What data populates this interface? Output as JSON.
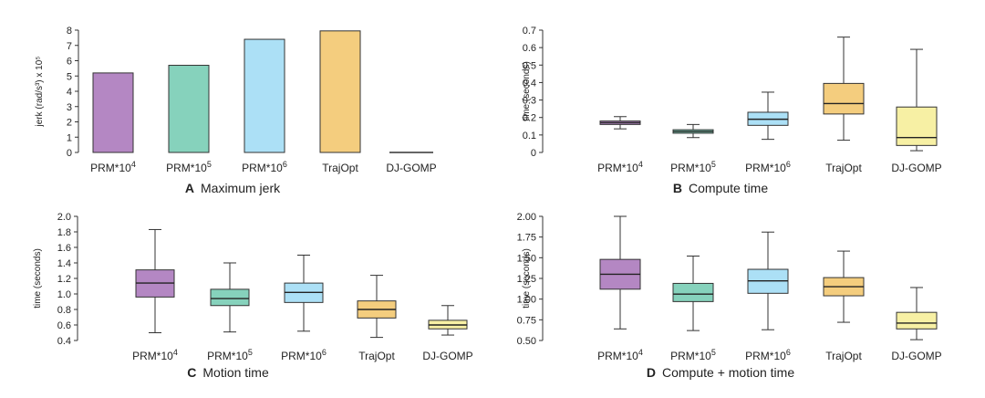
{
  "colors": {
    "PRM*10^4": {
      "fill": "#b487c3",
      "stroke": "#7b4f8c"
    },
    "PRM*10^5": {
      "fill": "#86d2bc",
      "stroke": "#3f9a80"
    },
    "PRM*10^6": {
      "fill": "#ace0f6",
      "stroke": "#5ba8cc"
    },
    "TrajOpt": {
      "fill": "#f4cd7e",
      "stroke": "#c2983b"
    },
    "DJ-GOMP": {
      "fill": "#f7f0a4",
      "stroke": "#b9ab52"
    }
  },
  "chart_data": [
    {
      "id": "A",
      "type": "bar",
      "caption_letter": "A",
      "caption": "Maximum jerk",
      "ylabel": "jerk (rad/s³) x 10⁵",
      "ylim": [
        0,
        8
      ],
      "yticks": [
        "0",
        "1",
        "2",
        "3",
        "4",
        "5",
        "6",
        "7",
        "8"
      ],
      "categories": [
        "PRM*10^4",
        "PRM*10^5",
        "PRM*10^6",
        "TrajOpt",
        "DJ-GOMP"
      ],
      "category_labels": [
        {
          "base": "PRM*10",
          "sup": "4"
        },
        {
          "base": "PRM*10",
          "sup": "5"
        },
        {
          "base": "PRM*10",
          "sup": "6"
        },
        {
          "base": "TrajOpt",
          "sup": ""
        },
        {
          "base": "DJ-GOMP",
          "sup": ""
        }
      ],
      "values": [
        5.2,
        5.7,
        7.4,
        7.95,
        0.0
      ]
    },
    {
      "id": "B",
      "type": "boxplot",
      "caption_letter": "B",
      "caption": "Compute time",
      "ylabel": "time (seconds)",
      "ylim": [
        0,
        0.7
      ],
      "yticks": [
        "0",
        "0.1",
        "0.2",
        "0.3",
        "0.4",
        "0.5",
        "0.6",
        "0.7"
      ],
      "categories": [
        "PRM*10^4",
        "PRM*10^5",
        "PRM*10^6",
        "TrajOpt",
        "DJ-GOMP"
      ],
      "category_labels": [
        {
          "base": "PRM*10",
          "sup": "4"
        },
        {
          "base": "PRM*10",
          "sup": "5"
        },
        {
          "base": "PRM*10",
          "sup": "6"
        },
        {
          "base": "TrajOpt",
          "sup": ""
        },
        {
          "base": "DJ-GOMP",
          "sup": ""
        }
      ],
      "boxes": [
        {
          "min": 0.135,
          "q1": 0.16,
          "median": 0.17,
          "q3": 0.18,
          "max": 0.205
        },
        {
          "min": 0.085,
          "q1": 0.11,
          "median": 0.12,
          "q3": 0.13,
          "max": 0.16
        },
        {
          "min": 0.075,
          "q1": 0.155,
          "median": 0.19,
          "q3": 0.23,
          "max": 0.345
        },
        {
          "min": 0.07,
          "q1": 0.22,
          "median": 0.28,
          "q3": 0.395,
          "max": 0.66
        },
        {
          "min": 0.01,
          "q1": 0.04,
          "median": 0.085,
          "q3": 0.26,
          "max": 0.59
        }
      ]
    },
    {
      "id": "C",
      "type": "boxplot",
      "caption_letter": "C",
      "caption": "Motion time",
      "ylabel": "time (seconds)",
      "ylim": [
        0.4,
        2.0
      ],
      "yticks": [
        "0.4",
        "0.6",
        "0.8",
        "1.0",
        "1.2",
        "1.4",
        "1.6",
        "1.8",
        "2.0"
      ],
      "categories": [
        "PRM*10^4",
        "PRM*10^5",
        "PRM*10^6",
        "TrajOpt",
        "DJ-GOMP"
      ],
      "category_labels": [
        {
          "base": "PRM*10",
          "sup": "4"
        },
        {
          "base": "PRM*10",
          "sup": "5"
        },
        {
          "base": "PRM*10",
          "sup": "6"
        },
        {
          "base": "TrajOpt",
          "sup": ""
        },
        {
          "base": "DJ-GOMP",
          "sup": ""
        }
      ],
      "boxes": [
        {
          "min": 0.5,
          "q1": 0.96,
          "median": 1.14,
          "q3": 1.31,
          "max": 1.83
        },
        {
          "min": 0.51,
          "q1": 0.85,
          "median": 0.94,
          "q3": 1.06,
          "max": 1.4
        },
        {
          "min": 0.52,
          "q1": 0.89,
          "median": 1.02,
          "q3": 1.14,
          "max": 1.5
        },
        {
          "min": 0.44,
          "q1": 0.69,
          "median": 0.8,
          "q3": 0.91,
          "max": 1.24
        },
        {
          "min": 0.47,
          "q1": 0.55,
          "median": 0.6,
          "q3": 0.66,
          "max": 0.85
        }
      ]
    },
    {
      "id": "D",
      "type": "boxplot",
      "caption_letter": "D",
      "caption": "Compute + motion time",
      "ylabel": "time (seconds)",
      "ylim": [
        0.5,
        2.0
      ],
      "yticks": [
        "0.50",
        "0.75",
        "1.00",
        "1.25",
        "1.50",
        "1.75",
        "2.00"
      ],
      "categories": [
        "PRM*10^4",
        "PRM*10^5",
        "PRM*10^6",
        "TrajOpt",
        "DJ-GOMP"
      ],
      "category_labels": [
        {
          "base": "PRM*10",
          "sup": "4"
        },
        {
          "base": "PRM*10",
          "sup": "5"
        },
        {
          "base": "PRM*10",
          "sup": "6"
        },
        {
          "base": "TrajOpt",
          "sup": ""
        },
        {
          "base": "DJ-GOMP",
          "sup": ""
        }
      ],
      "boxes": [
        {
          "min": 0.64,
          "q1": 1.12,
          "median": 1.3,
          "q3": 1.48,
          "max": 2.0
        },
        {
          "min": 0.62,
          "q1": 0.97,
          "median": 1.06,
          "q3": 1.19,
          "max": 1.52
        },
        {
          "min": 0.63,
          "q1": 1.07,
          "median": 1.22,
          "q3": 1.36,
          "max": 1.81
        },
        {
          "min": 0.72,
          "q1": 1.04,
          "median": 1.15,
          "q3": 1.26,
          "max": 1.58
        },
        {
          "min": 0.51,
          "q1": 0.64,
          "median": 0.71,
          "q3": 0.84,
          "max": 1.14
        }
      ]
    }
  ]
}
